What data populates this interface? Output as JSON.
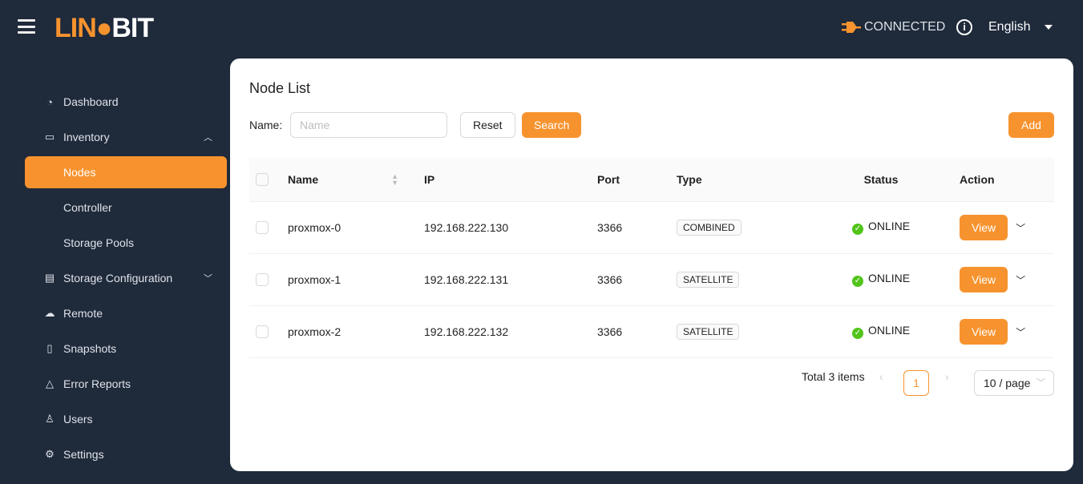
{
  "header": {
    "logo": "LINBIT",
    "logo_left": "LIN",
    "logo_right": "BIT",
    "status": "CONNECTED",
    "language": "English"
  },
  "sidebar": {
    "items": [
      {
        "label": "Dashboard",
        "icon": "pie-chart-icon"
      },
      {
        "label": "Inventory",
        "icon": "desktop-icon",
        "expanded": true,
        "children": [
          {
            "label": "Nodes",
            "active": true
          },
          {
            "label": "Controller"
          },
          {
            "label": "Storage Pools"
          }
        ]
      },
      {
        "label": "Storage Configuration",
        "icon": "database-icon",
        "expanded": false
      },
      {
        "label": "Remote",
        "icon": "cloud-icon"
      },
      {
        "label": "Snapshots",
        "icon": "file-icon"
      },
      {
        "label": "Error Reports",
        "icon": "warning-icon"
      },
      {
        "label": "Users",
        "icon": "user-icon"
      },
      {
        "label": "Settings",
        "icon": "gear-icon"
      }
    ]
  },
  "main": {
    "title": "Node List",
    "filter_label": "Name",
    "name_placeholder": "Name",
    "name_value": "",
    "reset": "Reset",
    "search": "Search",
    "add": "Add",
    "columns": [
      "Name",
      "IP",
      "Port",
      "Type",
      "Status",
      "Action"
    ],
    "rows": [
      {
        "name": "proxmox-0",
        "ip": "192.168.222.130",
        "port": "3366",
        "type": "COMBINED",
        "status": "ONLINE",
        "action": "View"
      },
      {
        "name": "proxmox-1",
        "ip": "192.168.222.131",
        "port": "3366",
        "type": "SATELLITE",
        "status": "ONLINE",
        "action": "View"
      },
      {
        "name": "proxmox-2",
        "ip": "192.168.222.132",
        "port": "3366",
        "type": "SATELLITE",
        "status": "ONLINE",
        "action": "View"
      }
    ],
    "pagination": {
      "total": "Total 3 items",
      "current": "1",
      "page_size": "10 / page"
    }
  },
  "colors": {
    "accent": "#f7932e",
    "background": "#1f2a3b",
    "online": "#52c41a"
  }
}
